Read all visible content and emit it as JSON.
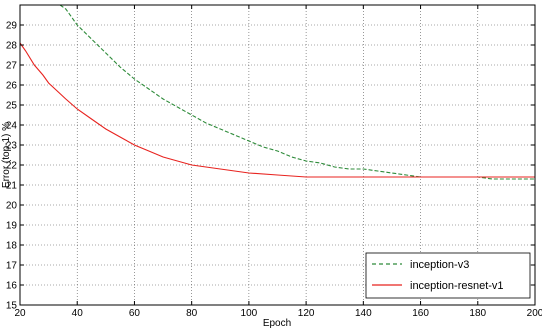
{
  "chart_data": {
    "type": "line",
    "title": "",
    "xlabel": "Epoch",
    "ylabel": "Error (top-1) %",
    "xlim": [
      20,
      200
    ],
    "ylim": [
      15,
      30
    ],
    "x_ticks": [
      20,
      40,
      60,
      80,
      100,
      120,
      140,
      160,
      180,
      200
    ],
    "y_ticks": [
      15,
      16,
      17,
      18,
      19,
      20,
      21,
      22,
      23,
      24,
      25,
      26,
      27,
      28,
      29
    ],
    "grid": true,
    "legend_position": "bottom-right",
    "series": [
      {
        "name": "inception-v3",
        "color": "#2e8b3a",
        "line_style": "dashed",
        "x": [
          34,
          36,
          40,
          45,
          50,
          55,
          60,
          65,
          70,
          75,
          80,
          85,
          90,
          95,
          100,
          105,
          110,
          115,
          120,
          125,
          130,
          135,
          140,
          145,
          150,
          155,
          160,
          165,
          170,
          175,
          180,
          185,
          190,
          195,
          200
        ],
        "y": [
          30.0,
          29.8,
          29.0,
          28.3,
          27.6,
          26.9,
          26.3,
          25.8,
          25.3,
          24.9,
          24.5,
          24.1,
          23.8,
          23.5,
          23.2,
          22.9,
          22.7,
          22.4,
          22.2,
          22.1,
          21.9,
          21.8,
          21.8,
          21.7,
          21.6,
          21.5,
          21.4,
          21.4,
          21.4,
          21.4,
          21.4,
          21.3,
          21.3,
          21.3,
          21.3
        ]
      },
      {
        "name": "inception-resnet-v1",
        "color": "#e8231f",
        "line_style": "solid",
        "x": [
          20,
          22,
          25,
          28,
          30,
          33,
          36,
          40,
          45,
          50,
          55,
          60,
          65,
          70,
          75,
          80,
          90,
          100,
          110,
          120,
          130,
          140,
          150,
          160,
          170,
          180,
          190,
          200
        ],
        "y": [
          28.1,
          27.7,
          27.0,
          26.5,
          26.1,
          25.7,
          25.3,
          24.8,
          24.3,
          23.8,
          23.4,
          23.0,
          22.7,
          22.4,
          22.2,
          22.0,
          21.8,
          21.6,
          21.5,
          21.4,
          21.4,
          21.4,
          21.4,
          21.4,
          21.4,
          21.4,
          21.4,
          21.4
        ]
      }
    ]
  }
}
